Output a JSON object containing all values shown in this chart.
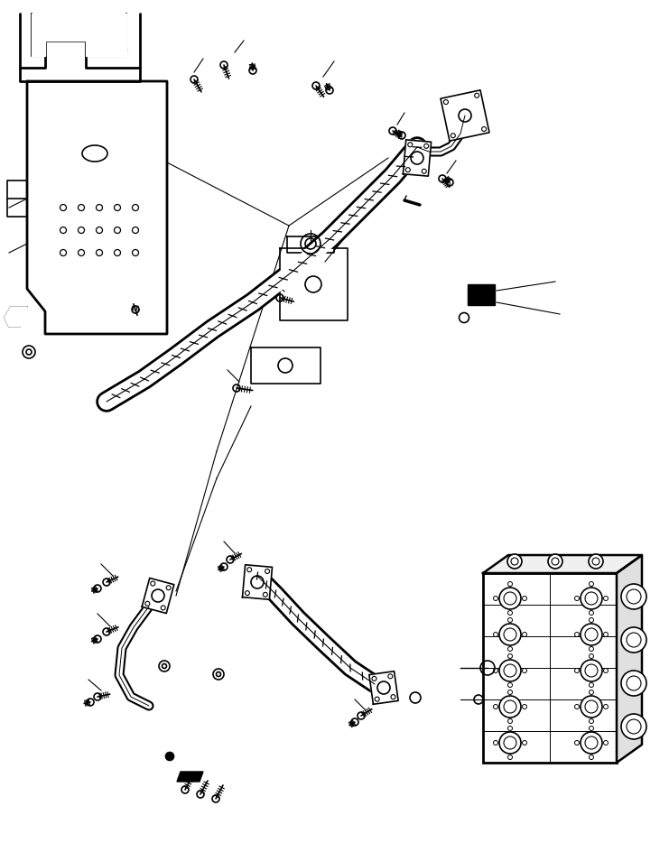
{
  "bg_color": "#ffffff",
  "line_color": "#000000",
  "line_width": 1.2,
  "fig_width": 7.41,
  "fig_height": 9.44
}
